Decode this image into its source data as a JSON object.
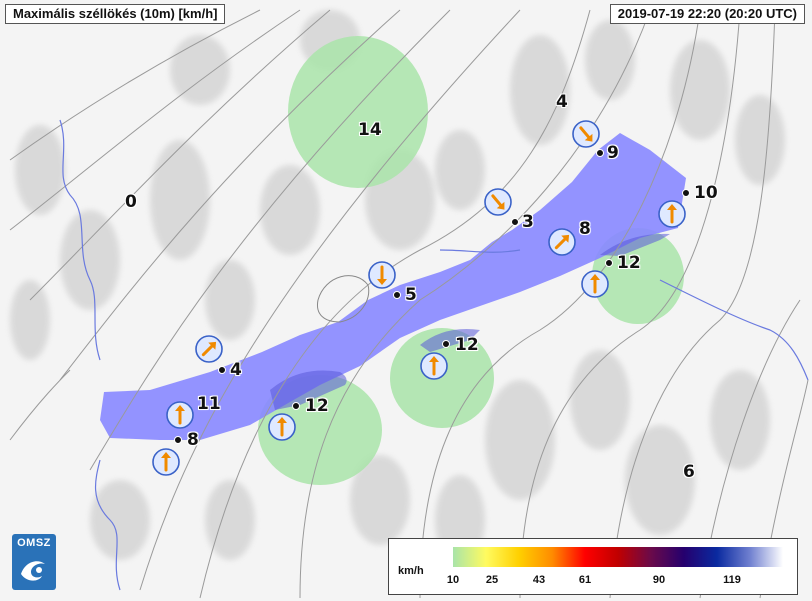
{
  "header": {
    "title": "Maximális széllökés (10m) [km/h]",
    "timestamp": "2019-07-19 22:20 (20:20 UTC)"
  },
  "logo": {
    "text": "OMSZ"
  },
  "legend": {
    "unit": "km/h",
    "ticks": [
      "10",
      "25",
      "43",
      "61",
      "90",
      "119"
    ],
    "colors": [
      "#a9e4a9",
      "#fffb60",
      "#ffd000",
      "#ff8c00",
      "#ff0000",
      "#c00000",
      "#6a0a4a",
      "#25006e",
      "#0a2aa0",
      "#7080d0",
      "#ffffff"
    ]
  },
  "colors": {
    "wind_band": "#8a8aff",
    "gust_area": "#a9e4a9",
    "streamline": "#9a9a9a",
    "river": "#6a7adf"
  },
  "stations": [
    {
      "id": "s1",
      "value": "4",
      "direction_deg": 45
    },
    {
      "id": "s2",
      "value": "11",
      "direction_deg": 0
    },
    {
      "id": "s3",
      "value": "8",
      "direction_deg": 0
    },
    {
      "id": "s4",
      "value": "12",
      "direction_deg": 0
    },
    {
      "id": "s5",
      "value": "5",
      "direction_deg": 180
    },
    {
      "id": "s6",
      "value": "12",
      "direction_deg": 0
    },
    {
      "id": "s7",
      "value": "3",
      "direction_deg": 140
    },
    {
      "id": "s8",
      "value": "9",
      "direction_deg": 140
    },
    {
      "id": "s9",
      "value": "8",
      "direction_deg": 45
    },
    {
      "id": "s10",
      "value": "12",
      "direction_deg": 0
    },
    {
      "id": "s11",
      "value": "10",
      "direction_deg": 0
    }
  ],
  "free_labels": [
    {
      "id": "f1",
      "value": "14"
    },
    {
      "id": "f2",
      "value": "0"
    },
    {
      "id": "f3",
      "value": "4"
    },
    {
      "id": "f4",
      "value": "6"
    }
  ]
}
